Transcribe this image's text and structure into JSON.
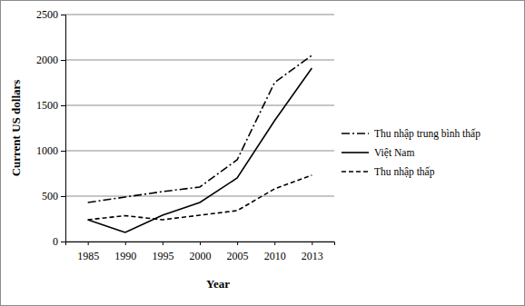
{
  "chart_data": {
    "type": "line",
    "x_label": "Year",
    "y_label": "Current US dollars",
    "categories": [
      "1985",
      "1990",
      "1995",
      "2000",
      "2005",
      "2010",
      "2013"
    ],
    "series": [
      {
        "name": "Thu nhập trung bình thấp",
        "color": "#000000",
        "line_style": "dashdot",
        "values": [
          430,
          490,
          550,
          600,
          900,
          1750,
          2050
        ]
      },
      {
        "name": "Việt Nam",
        "color": "#000000",
        "line_style": "solid",
        "values": [
          240,
          100,
          290,
          430,
          700,
          1330,
          1910
        ]
      },
      {
        "name": "Thu nhập thấp",
        "color": "#000000",
        "line_style": "dashed",
        "values": [
          240,
          285,
          240,
          290,
          340,
          580,
          730
        ]
      }
    ],
    "ylim": [
      0,
      2500
    ],
    "yticks": [
      0,
      500,
      1000,
      1500,
      2000,
      2500
    ],
    "grid": true,
    "legend": "right"
  }
}
